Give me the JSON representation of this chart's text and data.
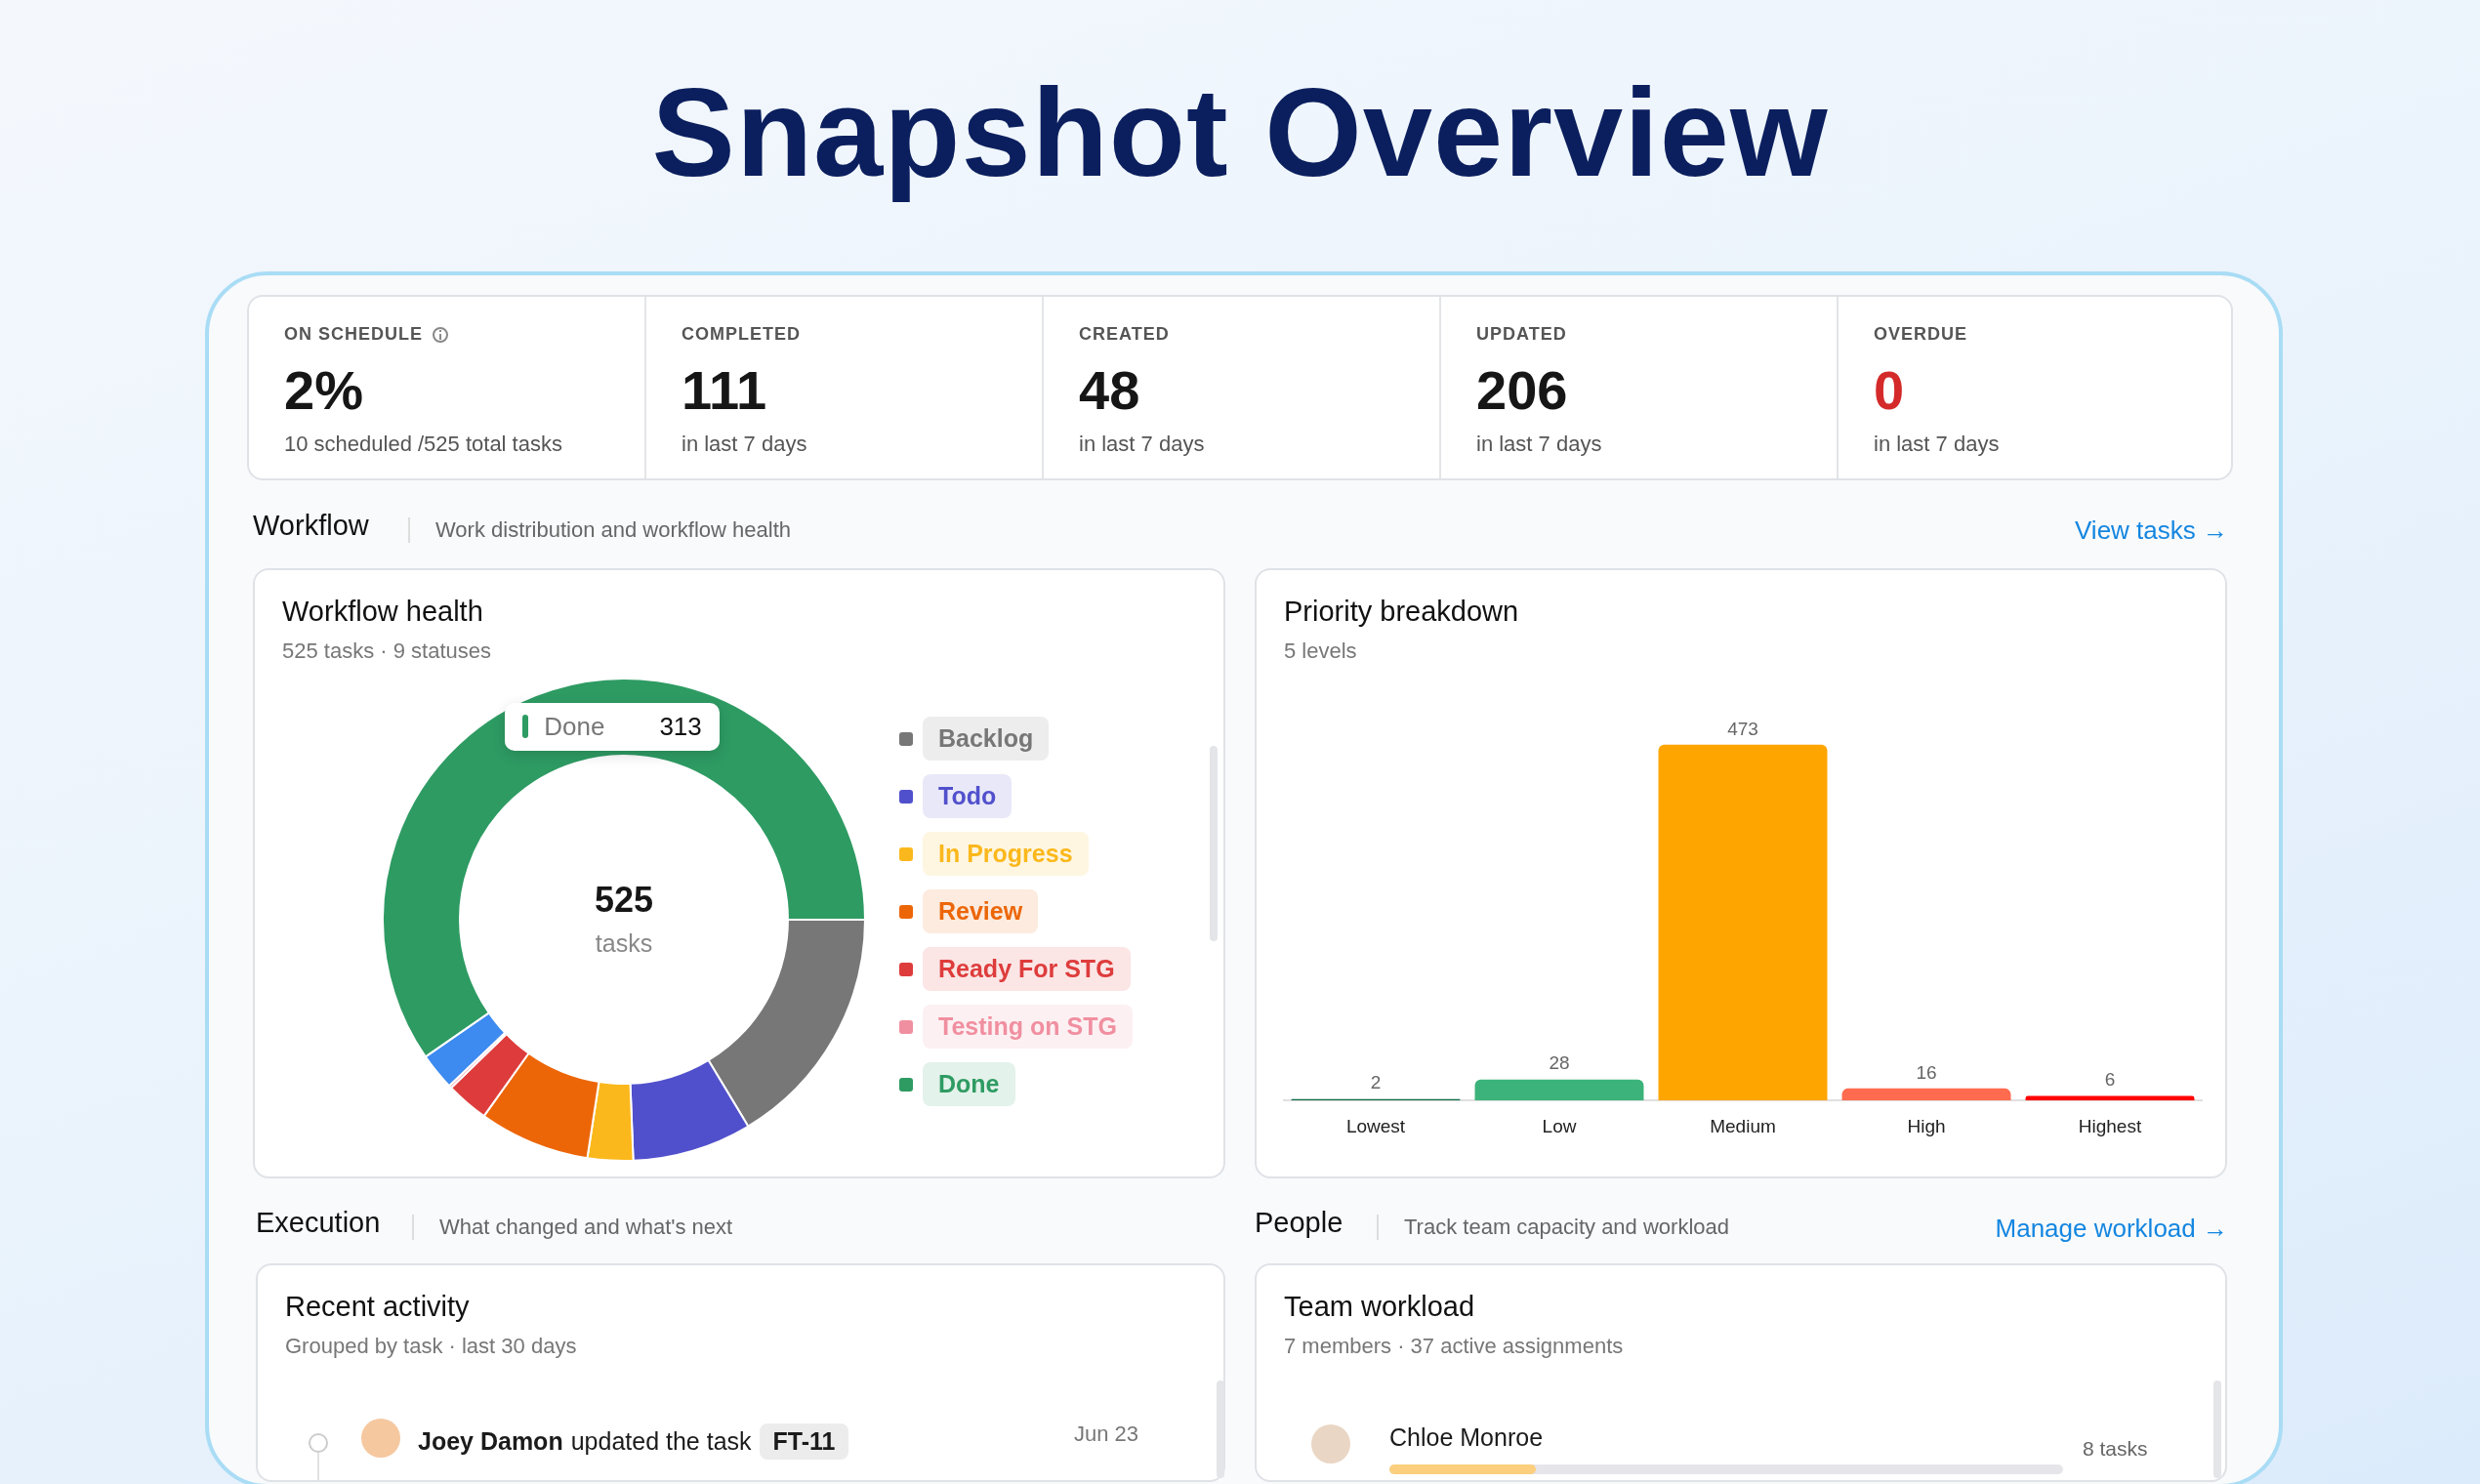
{
  "chart_data": [
    {
      "type": "other",
      "title": "Snapshot Overview",
      "annotations": [
        "ON SCHEDULE",
        "2%",
        "10 scheduled /525 total tasks",
        "COMPLETED",
        "111",
        "in last 7 days",
        "CREATED",
        "48",
        "in last 7 days",
        "UPDATED",
        "206",
        "in last 7 days",
        "OVERDUE",
        "0",
        "in last 7 days",
        "Workflow",
        "Work distribution and workflow health",
        "View tasks →"
      ]
    },
    {
      "type": "donut",
      "title": "Workflow health",
      "subtitle": "525 tasks · 9 statuses",
      "categories": [
        "Backlog",
        "Todo",
        "In Progress",
        "Review",
        "Ready For STG",
        "Testing on STG",
        null,
        "Done"
      ],
      "values": [
        86,
        42,
        16,
        39,
        15,
        1,
        13,
        313
      ],
      "colors": [
        "#777777",
        "#5150cc",
        "#fbb81c",
        "#ec6608",
        "#de3c3c",
        "#f08fa0",
        "#3d8af0",
        "#2e9b63"
      ],
      "value_labels": [
        null,
        null,
        null,
        null,
        null,
        null,
        null,
        "313"
      ],
      "annotations": [
        "525",
        "tasks"
      ],
      "legend": "right"
    },
    {
      "type": "bar",
      "title": "Priority breakdown",
      "subtitle": "5 levels",
      "categories": [
        "Lowest",
        "Low",
        "Medium",
        "High",
        "Highest"
      ],
      "values": [
        2,
        28,
        473,
        16,
        6
      ],
      "colors": [
        "#106b48",
        "#3cb37a",
        "#ffa500",
        "#ff6b4f",
        "#ff0000"
      ],
      "data_labels": true
    },
    {
      "type": "other",
      "title": "Recent activity",
      "subtitle": "Grouped by task · last 30 days",
      "annotations": [
        "Execution",
        "What changed and what's next",
        "Joey Damon",
        "updated the task",
        "FT-11",
        "Jun 23"
      ]
    },
    {
      "type": "other",
      "title": "Team workload",
      "subtitle": "7 members · 37 active assignments",
      "annotations": [
        "People",
        "Track team capacity and workload",
        "Manage workload →",
        "Chloe Monroe",
        "8 tasks"
      ]
    }
  ]
}
